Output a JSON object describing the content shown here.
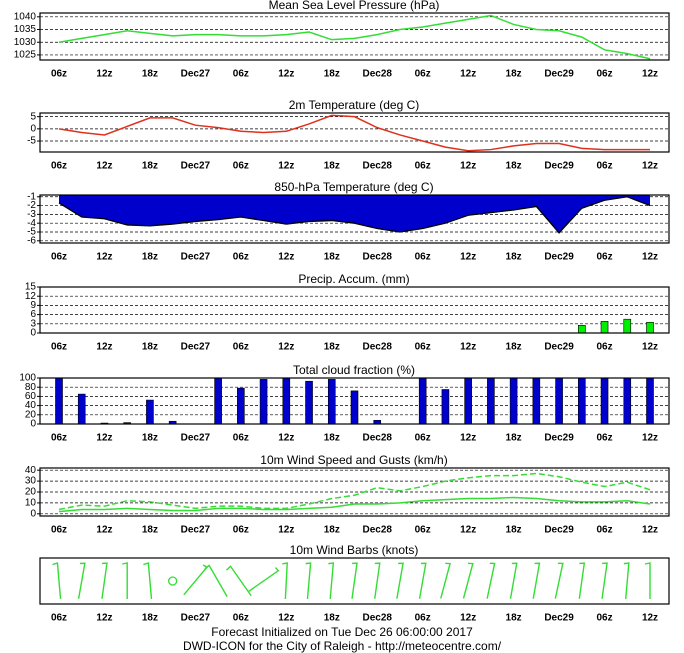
{
  "chart_data": [
    {
      "type": "line",
      "title": "Mean Sea Level Pressure (hPa)",
      "categories": [
        "06z",
        null,
        "12z",
        null,
        "18z",
        null,
        "Dec27",
        null,
        "06z",
        null,
        "12z",
        null,
        "18z",
        null,
        "Dec28",
        null,
        "06z",
        null,
        "12z",
        null,
        "18z",
        null,
        "Dec29",
        null,
        "06z",
        null,
        "12z"
      ],
      "series": [
        {
          "color": "#33dd33",
          "values": [
            1030,
            1031.5,
            1033,
            1034.5,
            1033.5,
            1032.5,
            1033,
            1033,
            1032.5,
            1032.5,
            1033,
            1034,
            1031,
            1031.5,
            1033,
            1035,
            1036,
            1037.5,
            1039,
            1040.5,
            1037,
            1035,
            1034.5,
            1032,
            1027,
            1025.5,
            1023.5
          ]
        }
      ],
      "ylim": [
        1023,
        1041.5
      ],
      "yticks": [
        1025,
        1030,
        1035,
        1040
      ],
      "grid": true
    },
    {
      "type": "line",
      "title": "2m Temperature (deg C)",
      "categories": [
        "06z",
        null,
        "12z",
        null,
        "18z",
        null,
        "Dec27",
        null,
        "06z",
        null,
        "12z",
        null,
        "18z",
        null,
        "Dec28",
        null,
        "06z",
        null,
        "12z",
        null,
        "18z",
        null,
        "Dec29",
        null,
        "06z",
        null,
        "12z"
      ],
      "series": [
        {
          "color": "#e0301e",
          "values": [
            0,
            -1.5,
            -2.5,
            1,
            4.5,
            4.5,
            1.5,
            0.5,
            -1,
            -1.5,
            -1,
            2,
            5.5,
            5,
            0.5,
            -2.5,
            -5,
            -7.5,
            -9,
            -8.5,
            -7,
            -6,
            -6,
            -8,
            -8.5,
            -8.5,
            -8.5
          ]
        }
      ],
      "ylim": [
        -9.5,
        6.5
      ],
      "yticks": [
        -5,
        0,
        5
      ],
      "grid": true
    },
    {
      "type": "area",
      "title": "850-hPa Temperature (deg C)",
      "categories": [
        "06z",
        null,
        "12z",
        null,
        "18z",
        null,
        "Dec27",
        null,
        "06z",
        null,
        "12z",
        null,
        "18z",
        null,
        "Dec28",
        null,
        "06z",
        null,
        "12z",
        null,
        "18z",
        null,
        "Dec29",
        null,
        "06z",
        null,
        "12z"
      ],
      "series": [
        {
          "color": "#0000cc",
          "values": [
            -1.7,
            -3.3,
            -3.5,
            -4.2,
            -4.3,
            -4.1,
            -3.8,
            -3.6,
            -3.3,
            -3.7,
            -4.1,
            -3.8,
            -3.7,
            -4.0,
            -4.6,
            -5.0,
            -4.6,
            -4.0,
            -3.1,
            -2.8,
            -2.5,
            -2.1,
            -5.1,
            -2.3,
            -1.4,
            -1.0,
            -2.0
          ]
        }
      ],
      "ylim": [
        -6.25,
        -0.8
      ],
      "yticks": [
        -6,
        -5,
        -4,
        -3,
        -2,
        -1
      ],
      "grid": true
    },
    {
      "type": "bar",
      "title": "Precip. Accum. (mm)",
      "categories": [
        "06z",
        null,
        "12z",
        null,
        "18z",
        null,
        "Dec27",
        null,
        "06z",
        null,
        "12z",
        null,
        "18z",
        null,
        "Dec28",
        null,
        "06z",
        null,
        "12z",
        null,
        "18z",
        null,
        "Dec29",
        null,
        "06z",
        null,
        "12z"
      ],
      "series": [
        {
          "color": "#00ee00",
          "values": [
            0,
            0,
            0,
            0,
            0,
            0,
            0,
            0,
            0,
            0,
            0,
            0,
            0,
            0,
            0,
            0,
            0,
            0,
            0,
            0,
            0,
            0,
            0,
            2.5,
            3.8,
            4.5,
            3.5
          ]
        }
      ],
      "ylim": [
        0,
        15
      ],
      "yticks": [
        0,
        3,
        6,
        9,
        12,
        15
      ],
      "grid": true
    },
    {
      "type": "bar",
      "title": "Total cloud fraction (%)",
      "categories": [
        "06z",
        null,
        "12z",
        null,
        "18z",
        null,
        "Dec27",
        null,
        "06z",
        null,
        "12z",
        null,
        "18z",
        null,
        "Dec28",
        null,
        "06z",
        null,
        "12z",
        null,
        "18z",
        null,
        "Dec29",
        null,
        "06z",
        null,
        "12z"
      ],
      "series": [
        {
          "color": "#0000cc",
          "values": [
            100,
            65,
            2,
            3,
            52,
            6,
            0,
            100,
            78,
            97,
            100,
            93,
            97,
            72,
            8,
            0,
            100,
            75,
            100,
            100,
            100,
            100,
            100,
            100,
            100,
            100,
            100
          ]
        }
      ],
      "ylim": [
        0,
        100
      ],
      "yticks": [
        0,
        20,
        40,
        60,
        80,
        100
      ],
      "grid": true
    },
    {
      "type": "line",
      "title": "10m Wind Speed and Gusts (km/h)",
      "categories": [
        "06z",
        null,
        "12z",
        null,
        "18z",
        null,
        "Dec27",
        null,
        "06z",
        null,
        "12z",
        null,
        "18z",
        null,
        "Dec28",
        null,
        "06z",
        null,
        "12z",
        null,
        "18z",
        null,
        "Dec29",
        null,
        "06z",
        null,
        "12z"
      ],
      "series": [
        {
          "color": "#33dd33",
          "values": [
            2,
            4,
            4,
            5,
            4,
            3,
            3,
            5,
            5,
            4,
            4,
            5,
            6,
            9,
            9,
            10,
            12,
            13,
            14,
            14,
            15,
            14,
            12,
            11,
            11,
            12,
            9
          ]
        },
        {
          "color": "#33dd33",
          "style": "dashed",
          "values": [
            4,
            8,
            7,
            12,
            11,
            8,
            5,
            7,
            7,
            5,
            5,
            9,
            14,
            17,
            24,
            21,
            25,
            30,
            33,
            35,
            35,
            37,
            34,
            29,
            25,
            29,
            22
          ]
        }
      ],
      "ylim": [
        -2,
        42
      ],
      "yticks": [
        0,
        10,
        20,
        30,
        40
      ],
      "grid": true
    },
    {
      "type": "barbs",
      "title": "10m Wind Barbs  (knots)",
      "categories": [
        "06z",
        null,
        "12z",
        null,
        "18z",
        null,
        "Dec27",
        null,
        "06z",
        null,
        "12z",
        null,
        "18z",
        null,
        "Dec28",
        null,
        "06z",
        null,
        "12z",
        null,
        "18z",
        null,
        "Dec29",
        null,
        "06z",
        null,
        "12z"
      ],
      "series": [
        {
          "color": "#33dd33",
          "values": [
            -5,
            10,
            8,
            0,
            -5,
            null,
            40,
            -30,
            -35,
            55,
            3,
            5,
            5,
            8,
            8,
            10,
            10,
            15,
            15,
            12,
            10,
            10,
            12,
            8,
            8,
            5,
            0
          ]
        }
      ]
    }
  ],
  "footer": {
    "line1": "Forecast Initialized on Tue Dec 26 06:00:00 2017",
    "line2": "DWD-ICON for the City of Raleigh - http://meteocentre.com/"
  }
}
